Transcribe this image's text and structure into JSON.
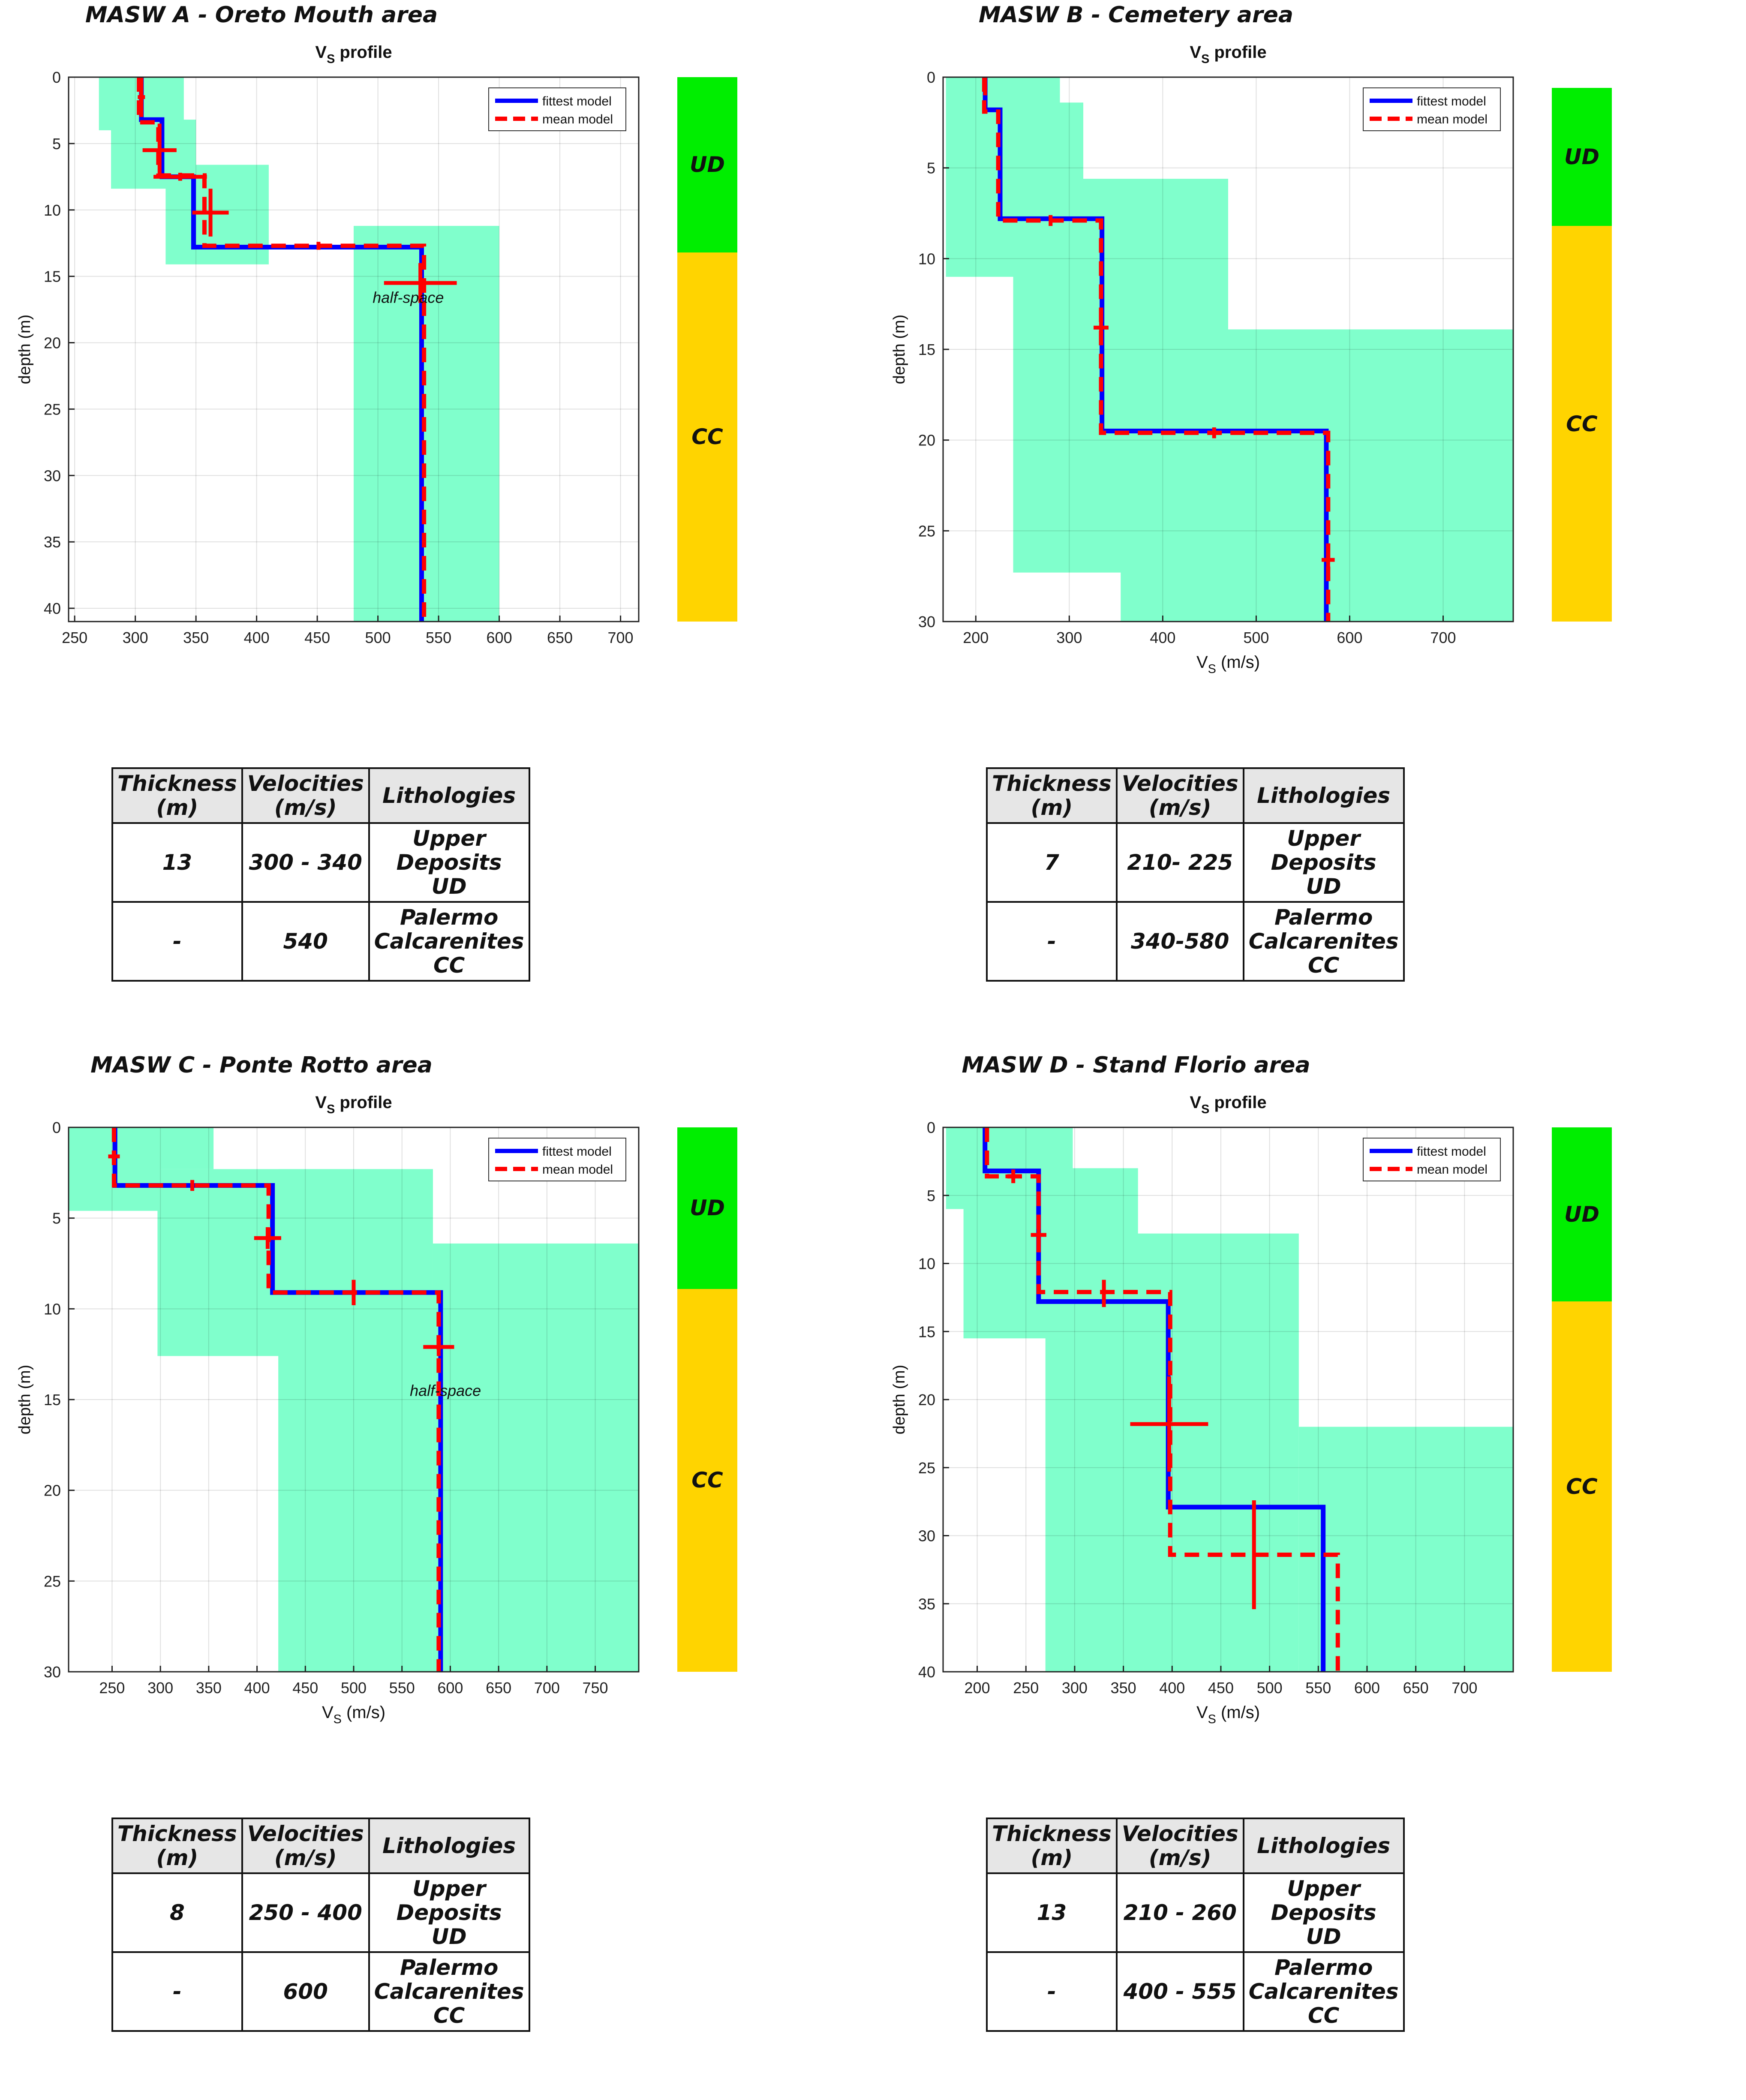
{
  "chart_data": [
    {
      "type": "line",
      "title": "MASW A - Oreto Mouth area",
      "subtitle_main": "V",
      "subtitle_sub": "S",
      "subtitle_rest": " profile",
      "xlabel_main": "",
      "xlabel_sub": "",
      "xlabel_rest": "",
      "ylabel": "depth (m)",
      "xlim": [
        245,
        715
      ],
      "ylim": [
        41,
        0
      ],
      "xticks": [
        250,
        300,
        350,
        400,
        450,
        500,
        550,
        600,
        650,
        700
      ],
      "yticks": [
        0,
        5,
        10,
        15,
        20,
        25,
        30,
        35,
        40
      ],
      "grid": true,
      "legend_position": "top-right",
      "uncertainty_regions": [
        {
          "x": [
            270,
            340
          ],
          "y": [
            0,
            4
          ]
        },
        {
          "x": [
            280,
            350
          ],
          "y": [
            3.2,
            8.4
          ]
        },
        {
          "x": [
            325,
            410
          ],
          "y": [
            6.6,
            14.1
          ]
        },
        {
          "x": [
            480,
            600
          ],
          "y": [
            11.2,
            41
          ]
        }
      ],
      "series": [
        {
          "name": "fittest model",
          "color": "#0000ff",
          "style": "solid",
          "points": [
            [
              305,
              0
            ],
            [
              305,
              3.2
            ],
            [
              322,
              3.2
            ],
            [
              322,
              7.5
            ],
            [
              348,
              7.5
            ],
            [
              348,
              12.8
            ],
            [
              536,
              12.8
            ],
            [
              536,
              41
            ]
          ]
        },
        {
          "name": "mean model",
          "color": "#ff0000",
          "style": "dashed",
          "points": [
            [
              303,
              0
            ],
            [
              303,
              3.4
            ],
            [
              319,
              3.4
            ],
            [
              319,
              7.4
            ],
            [
              357,
              7.4
            ],
            [
              357,
              12.7
            ],
            [
              538,
              12.7
            ],
            [
              538,
              41
            ]
          ]
        }
      ],
      "error_bars": [
        {
          "x": 305,
          "y": 1.5,
          "dx": 3,
          "dy": 1.5
        },
        {
          "x": 320,
          "y": 5.5,
          "dx": 14,
          "dy": 2
        },
        {
          "x": 337,
          "y": 7.5,
          "dx": 22,
          "dy": 0.3
        },
        {
          "x": 362,
          "y": 10.2,
          "dx": 15,
          "dy": 1.8
        },
        {
          "x": 451,
          "y": 12.7,
          "dx": 0,
          "dy": 0.3
        },
        {
          "x": 535,
          "y": 15.5,
          "dx": 30,
          "dy": 1.5
        }
      ],
      "annotations": [
        {
          "text": "half-space",
          "x": 525,
          "y": 17
        }
      ],
      "lithology_column": [
        {
          "label": "UD",
          "from": 0,
          "to": 13.2,
          "color": "#00ee00"
        },
        {
          "label": "CC",
          "from": 13.2,
          "to": 41,
          "color": "#ffd400"
        }
      ],
      "table": {
        "headers": [
          [
            "Thickness",
            "(m)"
          ],
          [
            "Velocities",
            "(m/s)"
          ],
          [
            "Lithologies"
          ]
        ],
        "rows": [
          [
            [
              "13"
            ],
            [
              "300 - 340"
            ],
            [
              "Upper",
              "Deposits",
              "UD"
            ]
          ],
          [
            [
              "-"
            ],
            [
              "540"
            ],
            [
              "Palermo",
              "Calcarenites",
              "CC"
            ]
          ]
        ]
      }
    },
    {
      "type": "line",
      "title": "MASW B - Cemetery area",
      "subtitle_main": "V",
      "subtitle_sub": "S",
      "subtitle_rest": " profile",
      "xlabel_main": "V",
      "xlabel_sub": "S",
      "xlabel_rest": " (m/s)",
      "ylabel": "depth (m)",
      "xlim": [
        165,
        775
      ],
      "ylim": [
        30,
        0
      ],
      "xticks": [
        200,
        300,
        400,
        500,
        600,
        700
      ],
      "yticks": [
        0,
        5,
        10,
        15,
        20,
        25,
        30
      ],
      "grid": true,
      "legend_position": "top-right",
      "uncertainty_regions": [
        {
          "x": [
            168,
            290
          ],
          "y": [
            0,
            11
          ]
        },
        {
          "x": [
            168,
            315
          ],
          "y": [
            1.4,
            11
          ]
        },
        {
          "x": [
            240,
            470
          ],
          "y": [
            5.6,
            27.3
          ]
        },
        {
          "x": [
            355,
            775
          ],
          "y": [
            13.9,
            30
          ]
        }
      ],
      "series": [
        {
          "name": "fittest model",
          "color": "#0000ff",
          "style": "solid",
          "points": [
            [
              210,
              0
            ],
            [
              210,
              1.8
            ],
            [
              226,
              1.8
            ],
            [
              226,
              7.8
            ],
            [
              335,
              7.8
            ],
            [
              335,
              19.5
            ],
            [
              575,
              19.5
            ],
            [
              575,
              30
            ]
          ]
        },
        {
          "name": "mean model",
          "color": "#ff0000",
          "style": "dashed",
          "points": [
            [
              209,
              0
            ],
            [
              209,
              1.9
            ],
            [
              224,
              1.9
            ],
            [
              224,
              7.9
            ],
            [
              334,
              7.9
            ],
            [
              334,
              19.6
            ],
            [
              577,
              19.6
            ],
            [
              577,
              30
            ]
          ]
        }
      ],
      "error_bars": [
        {
          "x": 210,
          "y": 0.5,
          "dx": 0,
          "dy": 0.5
        },
        {
          "x": 280,
          "y": 7.9,
          "dx": 0,
          "dy": 0.3
        },
        {
          "x": 334,
          "y": 13.8,
          "dx": 8,
          "dy": 0.8
        },
        {
          "x": 455,
          "y": 19.6,
          "dx": 0,
          "dy": 0.3
        },
        {
          "x": 577,
          "y": 26.6,
          "dx": 7,
          "dy": 0.6
        }
      ],
      "annotations": [],
      "lithology_column": [
        {
          "label": "UD",
          "from": 0.6,
          "to": 8.2,
          "color": "#00ee00"
        },
        {
          "label": "CC",
          "from": 8.2,
          "to": 30,
          "color": "#ffd400"
        }
      ],
      "table": {
        "headers": [
          [
            "Thickness",
            "(m)"
          ],
          [
            "Velocities",
            "(m/s)"
          ],
          [
            "Lithologies"
          ]
        ],
        "rows": [
          [
            [
              "7"
            ],
            [
              "210- 225"
            ],
            [
              "Upper",
              "Deposits",
              "UD"
            ]
          ],
          [
            [
              "-"
            ],
            [
              "340-580"
            ],
            [
              "Palermo",
              "Calcarenites",
              "CC"
            ]
          ]
        ]
      }
    },
    {
      "type": "line",
      "title": "MASW C - Ponte Rotto area",
      "subtitle_main": "V",
      "subtitle_sub": "S",
      "subtitle_rest": " profile",
      "xlabel_main": "V",
      "xlabel_sub": "S",
      "xlabel_rest": " (m/s)",
      "ylabel": "depth (m)",
      "xlim": [
        205,
        795
      ],
      "ylim": [
        30,
        0
      ],
      "xticks": [
        250,
        300,
        350,
        400,
        450,
        500,
        550,
        600,
        650,
        700,
        750
      ],
      "yticks": [
        0,
        5,
        10,
        15,
        20,
        25,
        30
      ],
      "grid": true,
      "legend_position": "top-right",
      "uncertainty_regions": [
        {
          "x": [
            205,
            355
          ],
          "y": [
            0,
            2.3
          ]
        },
        {
          "x": [
            205,
            300
          ],
          "y": [
            0,
            4.6
          ]
        },
        {
          "x": [
            297,
            582
          ],
          "y": [
            2.3,
            12.6
          ]
        },
        {
          "x": [
            422,
            582
          ],
          "y": [
            2.3,
            30
          ]
        },
        {
          "x": [
            582,
            795
          ],
          "y": [
            6.4,
            30
          ]
        }
      ],
      "series": [
        {
          "name": "fittest model",
          "color": "#0000ff",
          "style": "solid",
          "points": [
            [
              253,
              0
            ],
            [
              253,
              3.2
            ],
            [
              416,
              3.2
            ],
            [
              416,
              9.1
            ],
            [
              590,
              9.1
            ],
            [
              590,
              30
            ]
          ]
        },
        {
          "name": "mean model",
          "color": "#ff0000",
          "style": "dashed",
          "points": [
            [
              252,
              0
            ],
            [
              252,
              3.2
            ],
            [
              412,
              3.2
            ],
            [
              412,
              9.1
            ],
            [
              588,
              9.1
            ],
            [
              588,
              30
            ]
          ]
        }
      ],
      "error_bars": [
        {
          "x": 252,
          "y": 1.6,
          "dx": 6,
          "dy": 0.3
        },
        {
          "x": 333,
          "y": 3.2,
          "dx": 0,
          "dy": 0.3
        },
        {
          "x": 411,
          "y": 6.1,
          "dx": 14,
          "dy": 0.6
        },
        {
          "x": 500,
          "y": 9.1,
          "dx": 0,
          "dy": 0.7
        },
        {
          "x": 588,
          "y": 12.1,
          "dx": 16,
          "dy": 0.5
        }
      ],
      "annotations": [
        {
          "text": "half-space",
          "x": 595,
          "y": 14.8
        }
      ],
      "lithology_column": [
        {
          "label": "UD",
          "from": 0,
          "to": 8.9,
          "color": "#00ee00"
        },
        {
          "label": "CC",
          "from": 8.9,
          "to": 30,
          "color": "#ffd400"
        }
      ],
      "table": {
        "headers": [
          [
            "Thickness",
            "(m)"
          ],
          [
            "Velocities",
            "(m/s)"
          ],
          [
            "Lithologies"
          ]
        ],
        "rows": [
          [
            [
              "8"
            ],
            [
              "250 - 400"
            ],
            [
              "Upper",
              "Deposits",
              "UD"
            ]
          ],
          [
            [
              "-"
            ],
            [
              "600"
            ],
            [
              "Palermo",
              "Calcarenites",
              "CC"
            ]
          ]
        ]
      }
    },
    {
      "type": "line",
      "title": "MASW D - Stand Florio area",
      "subtitle_main": "V",
      "subtitle_sub": "S",
      "subtitle_rest": " profile",
      "xlabel_main": "V",
      "xlabel_sub": "S",
      "xlabel_rest": " (m/s)",
      "ylabel": "depth (m)",
      "xlim": [
        165,
        750
      ],
      "ylim": [
        40,
        0
      ],
      "xticks": [
        200,
        250,
        300,
        350,
        400,
        450,
        500,
        550,
        600,
        650,
        700
      ],
      "yticks": [
        0,
        5,
        10,
        15,
        20,
        25,
        30,
        35,
        40
      ],
      "grid": true,
      "legend_position": "top-right",
      "uncertainty_regions": [
        {
          "x": [
            168,
            298
          ],
          "y": [
            0,
            6
          ]
        },
        {
          "x": [
            186,
            298
          ],
          "y": [
            0,
            15.5
          ]
        },
        {
          "x": [
            186,
            365
          ],
          "y": [
            3,
            15.5
          ]
        },
        {
          "x": [
            270,
            530
          ],
          "y": [
            7.8,
            40
          ]
        },
        {
          "x": [
            530,
            750
          ],
          "y": [
            22,
            40
          ]
        }
      ],
      "series": [
        {
          "name": "fittest model",
          "color": "#0000ff",
          "style": "solid",
          "points": [
            [
              208,
              0
            ],
            [
              208,
              3.2
            ],
            [
              263,
              3.2
            ],
            [
              263,
              12.8
            ],
            [
              396,
              12.8
            ],
            [
              396,
              27.9
            ],
            [
              555,
              27.9
            ],
            [
              555,
              40
            ]
          ]
        },
        {
          "name": "mean model",
          "color": "#ff0000",
          "style": "dashed",
          "points": [
            [
              210,
              0
            ],
            [
              210,
              3.6
            ],
            [
              263,
              3.6
            ],
            [
              263,
              12.1
            ],
            [
              398,
              12.1
            ],
            [
              398,
              31.4
            ],
            [
              570,
              31.4
            ],
            [
              570,
              40
            ]
          ]
        }
      ],
      "error_bars": [
        {
          "x": 237,
          "y": 3.6,
          "dx": 8,
          "dy": 0.5
        },
        {
          "x": 263,
          "y": 7.9,
          "dx": 8,
          "dy": 1.2
        },
        {
          "x": 330,
          "y": 12.2,
          "dx": 0,
          "dy": 1
        },
        {
          "x": 397,
          "y": 21.8,
          "dx": 40,
          "dy": 3.5
        },
        {
          "x": 484,
          "y": 31.4,
          "dx": 0,
          "dy": 4
        }
      ],
      "annotations": [],
      "lithology_column": [
        {
          "label": "UD",
          "from": 0,
          "to": 12.8,
          "color": "#00ee00"
        },
        {
          "label": "CC",
          "from": 12.8,
          "to": 40,
          "color": "#ffd400"
        }
      ],
      "table": {
        "headers": [
          [
            "Thickness",
            "(m)"
          ],
          [
            "Velocities",
            "(m/s)"
          ],
          [
            "Lithologies"
          ]
        ],
        "rows": [
          [
            [
              "13"
            ],
            [
              "210 - 260"
            ],
            [
              "Upper",
              "Deposits",
              "UD"
            ]
          ],
          [
            [
              "-"
            ],
            [
              "400 - 555"
            ],
            [
              "Palermo",
              "Calcarenites",
              "CC"
            ]
          ]
        ]
      }
    }
  ]
}
